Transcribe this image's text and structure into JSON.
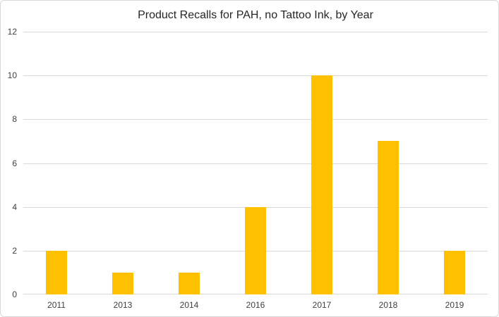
{
  "chart_data": {
    "type": "bar",
    "title": "Product Recalls for PAH, no Tattoo Ink, by Year",
    "categories": [
      "2011",
      "2013",
      "2014",
      "2016",
      "2017",
      "2018",
      "2019"
    ],
    "values": [
      2,
      1,
      1,
      4,
      10,
      7,
      2
    ],
    "xlabel": "",
    "ylabel": "",
    "ylim": [
      0,
      12
    ],
    "yticks": [
      0,
      2,
      4,
      6,
      8,
      10,
      12
    ],
    "grid": "horizontal",
    "legend_position": "none",
    "colors": {
      "bar": "#FFC000",
      "gridline": "#D9D9D9",
      "axis_line": "#D9D9D9",
      "title_text": "#262626",
      "axis_label_text": "#404040",
      "background": "#FFFFFF",
      "chart_border": "#D9D9D9"
    }
  }
}
